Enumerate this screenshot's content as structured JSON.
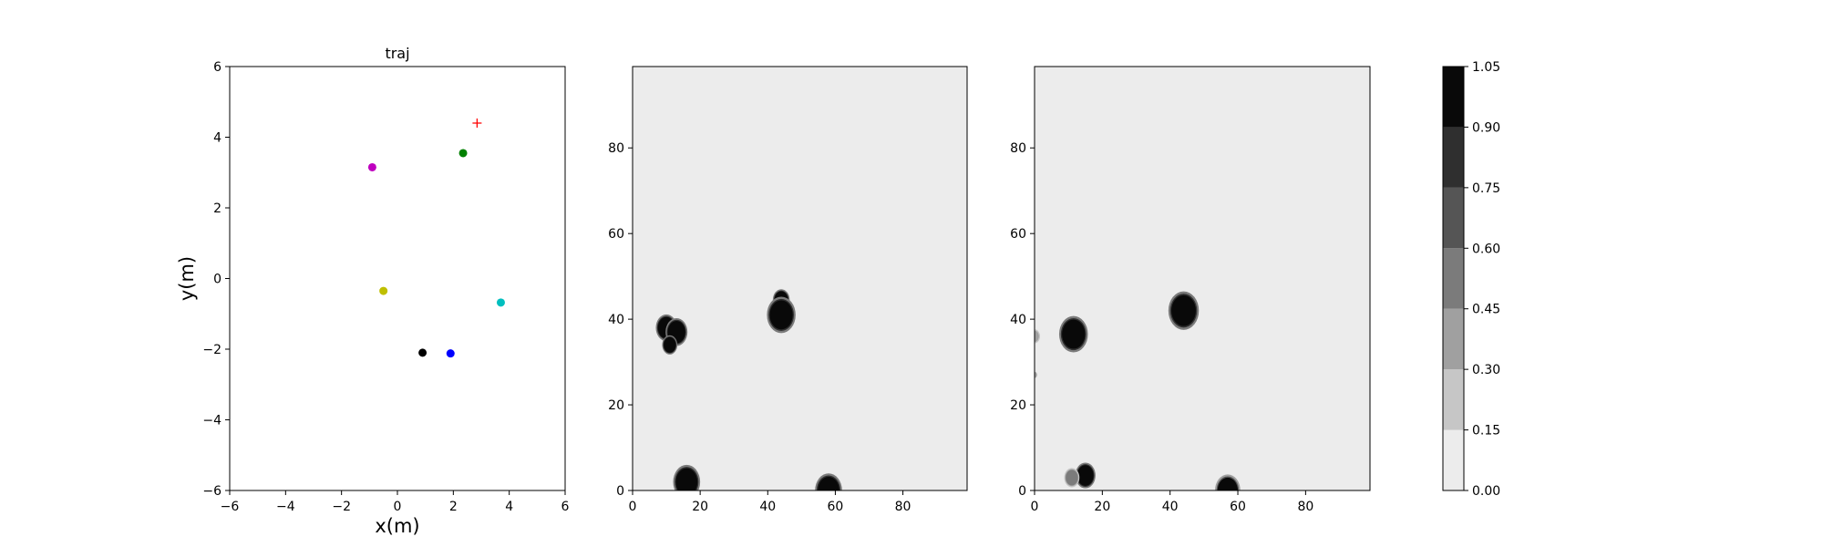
{
  "chart_data": [
    {
      "type": "scatter",
      "title": "traj",
      "xlabel": "x(m)",
      "ylabel": "y(m)",
      "xlim": [
        -6,
        6
      ],
      "ylim": [
        -6,
        6
      ],
      "xticks": [
        "−6",
        "−4",
        "−2",
        "0",
        "2",
        "4",
        "6"
      ],
      "yticks": [
        "−6",
        "−4",
        "−2",
        "0",
        "2",
        "4",
        "6"
      ],
      "grid": false,
      "points": [
        {
          "x": -0.9,
          "y": 3.15,
          "color": "#bf00bf",
          "marker": "circle"
        },
        {
          "x": 2.35,
          "y": 3.55,
          "color": "#008000",
          "marker": "circle"
        },
        {
          "x": -0.5,
          "y": -0.35,
          "color": "#bfbf00",
          "marker": "circle"
        },
        {
          "x": 3.7,
          "y": -0.68,
          "color": "#00bfbf",
          "marker": "circle"
        },
        {
          "x": 0.9,
          "y": -2.1,
          "color": "#000000",
          "marker": "circle"
        },
        {
          "x": 1.9,
          "y": -2.12,
          "color": "#0000ff",
          "marker": "circle"
        },
        {
          "x": 2.85,
          "y": 4.4,
          "color": "#ff0000",
          "marker": "plus"
        }
      ]
    },
    {
      "type": "heatmap",
      "xlim": [
        0,
        99
      ],
      "ylim": [
        0,
        99
      ],
      "xticks": [
        "0",
        "20",
        "40",
        "60",
        "80"
      ],
      "yticks": [
        "0",
        "20",
        "40",
        "60",
        "80"
      ],
      "background_value": 0.05,
      "blobs": [
        {
          "x": 10,
          "y": 38,
          "radius": 2.5,
          "value": 1.0
        },
        {
          "x": 13,
          "y": 37,
          "radius": 2.6,
          "value": 1.0
        },
        {
          "x": 11,
          "y": 34,
          "radius": 1.8,
          "value": 1.0
        },
        {
          "x": 44,
          "y": 44.5,
          "radius": 2.0,
          "value": 1.0
        },
        {
          "x": 44,
          "y": 41,
          "radius": 3.4,
          "value": 1.0
        },
        {
          "x": 16,
          "y": 2,
          "radius": 3.2,
          "value": 1.0
        },
        {
          "x": 58,
          "y": 0,
          "radius": 3.2,
          "value": 1.0
        }
      ]
    },
    {
      "type": "heatmap",
      "xlim": [
        0,
        99
      ],
      "ylim": [
        0,
        99
      ],
      "xticks": [
        "0",
        "20",
        "40",
        "60",
        "80"
      ],
      "yticks": [
        "0",
        "20",
        "40",
        "60",
        "80"
      ],
      "background_value": 0.05,
      "blobs": [
        {
          "x": 11.5,
          "y": 36.5,
          "radius": 3.4,
          "value": 1.0
        },
        {
          "x": 44,
          "y": 42,
          "radius": 3.6,
          "value": 1.0
        },
        {
          "x": 15,
          "y": 3.5,
          "radius": 2.4,
          "value": 1.0
        },
        {
          "x": 11,
          "y": 3,
          "radius": 1.8,
          "value": 0.55
        },
        {
          "x": 57,
          "y": 0,
          "radius": 3.0,
          "value": 0.9
        },
        {
          "x": 0,
          "y": 36,
          "radius": 1.3,
          "value": 0.35
        },
        {
          "x": 0,
          "y": 27,
          "radius": 0.7,
          "value": 0.3
        }
      ]
    }
  ],
  "colorbar": {
    "ticks": [
      "0.00",
      "0.15",
      "0.30",
      "0.45",
      "0.60",
      "0.75",
      "0.90",
      "1.05"
    ],
    "levels": [
      0.0,
      0.15,
      0.3,
      0.45,
      0.6,
      0.75,
      0.9,
      1.05
    ],
    "colors": [
      "#ececec",
      "#c6c6c6",
      "#a0a0a0",
      "#7b7b7b",
      "#555555",
      "#2f2f2f",
      "#090909"
    ]
  }
}
